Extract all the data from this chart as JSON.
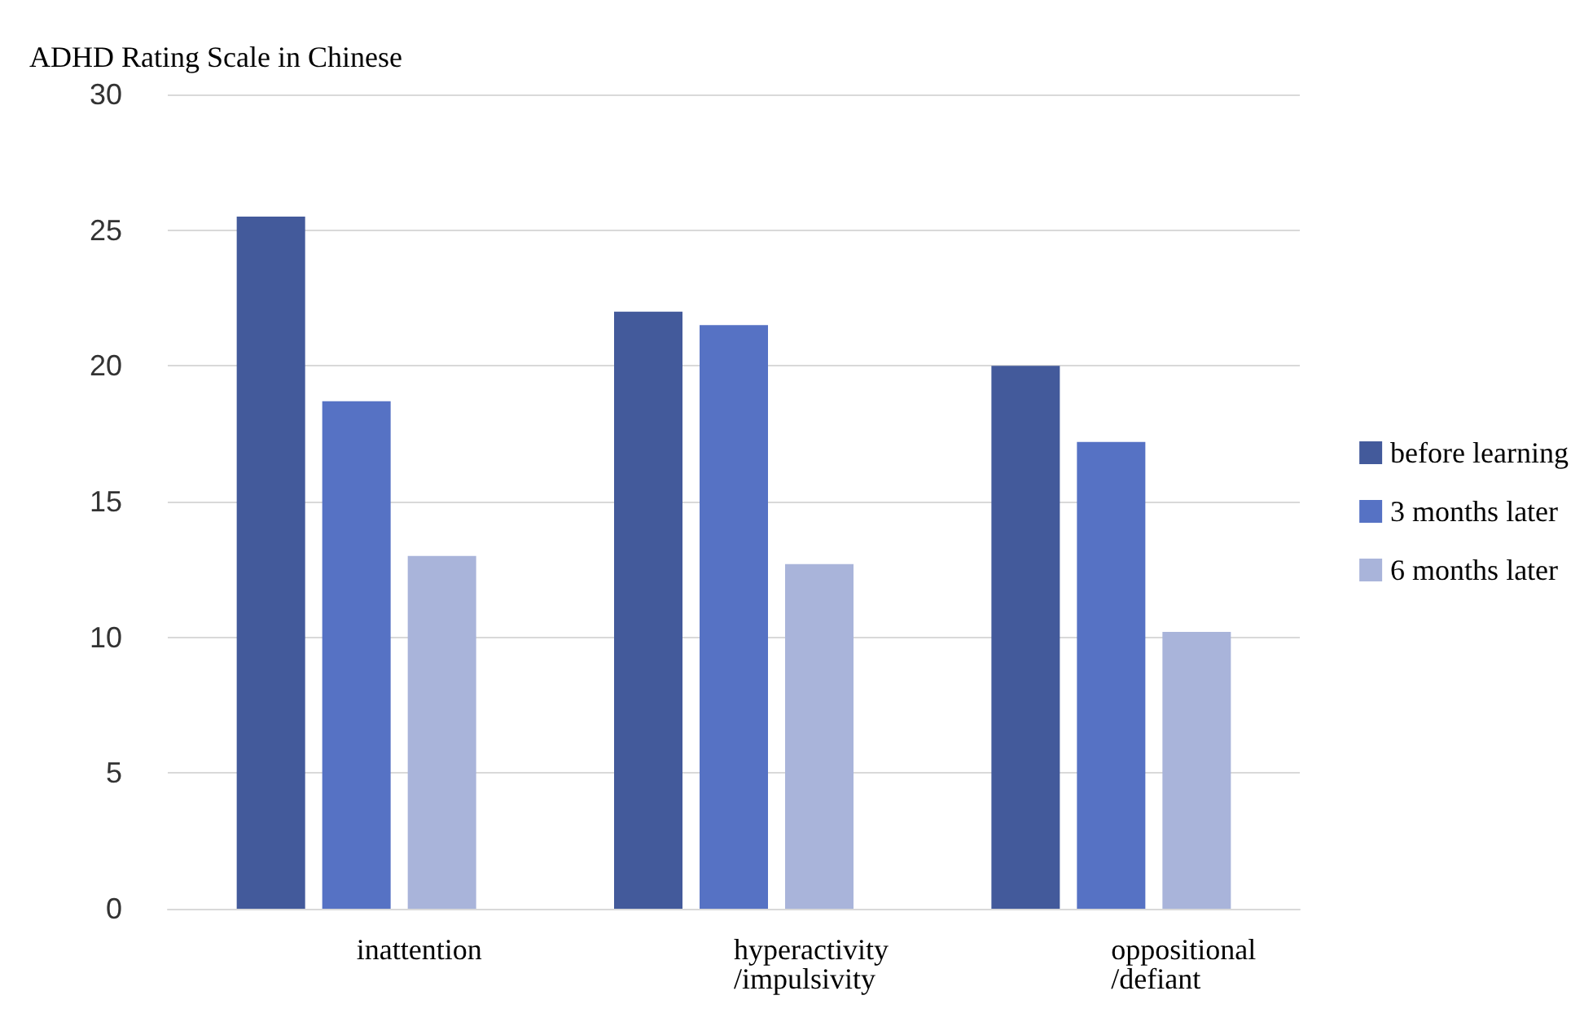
{
  "chart_data": {
    "type": "bar",
    "ylabel": "ADHD Rating Scale in Chinese",
    "categories": [
      "inattention",
      "hyperactivity\n/impulsivity",
      "oppositional\n/defiant"
    ],
    "series": [
      {
        "name": "before learning",
        "color": "#435a9b",
        "values": [
          25.5,
          22,
          20
        ]
      },
      {
        "name": "3 months later",
        "color": "#5672c4",
        "values": [
          18.7,
          21.5,
          17.2
        ]
      },
      {
        "name": "6 months later",
        "color": "#a9b4da",
        "values": [
          13,
          12.7,
          10.2
        ]
      }
    ],
    "ylim": [
      0,
      30
    ],
    "yticks": [
      0,
      5,
      10,
      15,
      20,
      25,
      30
    ],
    "grid": "y",
    "legend": "right"
  }
}
